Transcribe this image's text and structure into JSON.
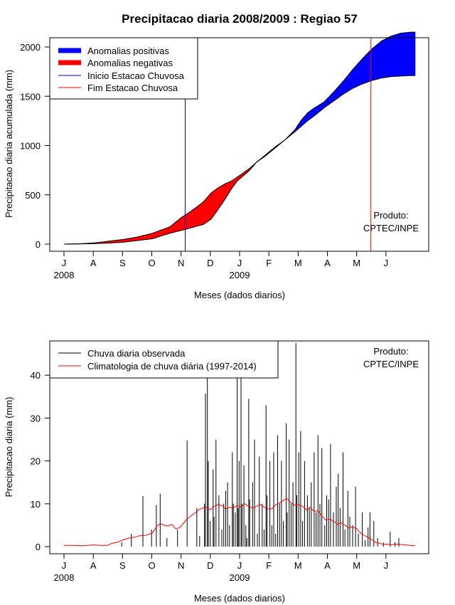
{
  "chart_data": [
    {
      "type": "area",
      "title": "Precipitacao diaria 2008/2009 : Regiao 57",
      "xlabel": "Meses (dados diarios)",
      "ylabel": "Precipitacao diaria acumulada (mm)",
      "x_ticks": [
        "J",
        "A",
        "S",
        "O",
        "N",
        "D",
        "J",
        "F",
        "M",
        "A",
        "M",
        "J"
      ],
      "year_labels": [
        {
          "text": "2008",
          "tick_index": 0
        },
        {
          "text": "2009",
          "tick_index": 6
        }
      ],
      "ylim": [
        0,
        2200
      ],
      "y_ticks": [
        0,
        500,
        1000,
        1500,
        2000
      ],
      "x_range_days": [
        0,
        365
      ],
      "legend": {
        "placement": "top-left",
        "items": [
          {
            "label": "Anomalias positivas",
            "color": "#0000ff",
            "style": "thick"
          },
          {
            "label": "Anomalias negativas",
            "color": "#ff0000",
            "style": "thick"
          },
          {
            "label": "Inicio Estacao Chuvosa",
            "color": "#0000ff",
            "style": "thin"
          },
          {
            "label": "Fim Estacao Chuvosa",
            "color": "#ff0000",
            "style": "thin"
          }
        ]
      },
      "series": [
        {
          "name": "observed_cumulative",
          "points": [
            [
              0,
              0
            ],
            [
              15,
              2
            ],
            [
              31,
              5
            ],
            [
              45,
              10
            ],
            [
              62,
              20
            ],
            [
              75,
              35
            ],
            [
              92,
              55
            ],
            [
              100,
              80
            ],
            [
              110,
              110
            ],
            [
              122,
              140
            ],
            [
              130,
              160
            ],
            [
              137,
              180
            ],
            [
              145,
              200
            ],
            [
              153,
              255
            ],
            [
              160,
              350
            ],
            [
              167,
              450
            ],
            [
              174,
              560
            ],
            [
              180,
              640
            ],
            [
              186,
              690
            ],
            [
              193,
              750
            ],
            [
              200,
              830
            ],
            [
              210,
              910
            ],
            [
              220,
              990
            ],
            [
              230,
              1060
            ],
            [
              240,
              1160
            ],
            [
              246,
              1250
            ],
            [
              253,
              1330
            ],
            [
              260,
              1380
            ],
            [
              270,
              1440
            ],
            [
              280,
              1540
            ],
            [
              290,
              1650
            ],
            [
              300,
              1770
            ],
            [
              310,
              1880
            ],
            [
              320,
              1980
            ],
            [
              330,
              2060
            ],
            [
              340,
              2110
            ],
            [
              350,
              2140
            ],
            [
              360,
              2150
            ],
            [
              365,
              2150
            ]
          ]
        },
        {
          "name": "climatology_cumulative",
          "points": [
            [
              0,
              0
            ],
            [
              15,
              3
            ],
            [
              31,
              12
            ],
            [
              45,
              28
            ],
            [
              62,
              48
            ],
            [
              75,
              70
            ],
            [
              92,
              110
            ],
            [
              100,
              140
            ],
            [
              110,
              175
            ],
            [
              122,
              270
            ],
            [
              130,
              320
            ],
            [
              137,
              370
            ],
            [
              145,
              430
            ],
            [
              153,
              520
            ],
            [
              160,
              570
            ],
            [
              167,
              610
            ],
            [
              174,
              640
            ],
            [
              180,
              680
            ],
            [
              186,
              720
            ],
            [
              193,
              770
            ],
            [
              200,
              830
            ],
            [
              210,
              900
            ],
            [
              220,
              980
            ],
            [
              230,
              1060
            ],
            [
              240,
              1140
            ],
            [
              246,
              1190
            ],
            [
              253,
              1250
            ],
            [
              260,
              1300
            ],
            [
              270,
              1380
            ],
            [
              280,
              1450
            ],
            [
              290,
              1520
            ],
            [
              300,
              1580
            ],
            [
              310,
              1625
            ],
            [
              320,
              1660
            ],
            [
              330,
              1685
            ],
            [
              340,
              1700
            ],
            [
              350,
              1705
            ],
            [
              360,
              1710
            ],
            [
              365,
              1710
            ]
          ]
        }
      ],
      "season_markers": {
        "start_day": 126,
        "end_day": 319
      },
      "credit": [
        "Produto:",
        "CPTEC/INPE"
      ]
    },
    {
      "type": "bar",
      "xlabel": "Meses (dados diarios)",
      "ylabel": "Precipitacao diaria (mm)",
      "x_ticks": [
        "J",
        "A",
        "S",
        "O",
        "N",
        "D",
        "J",
        "F",
        "M",
        "A",
        "M",
        "J"
      ],
      "year_labels": [
        {
          "text": "2008",
          "tick_index": 0
        },
        {
          "text": "2009",
          "tick_index": 6
        }
      ],
      "ylim": [
        0,
        48
      ],
      "y_ticks": [
        0,
        10,
        20,
        30,
        40
      ],
      "x_range_days": [
        0,
        365
      ],
      "legend": {
        "placement": "top-left",
        "items": [
          {
            "label": "Chuva diaria observada",
            "color": "#000000",
            "style": "thin"
          },
          {
            "label": "Climatologia de chuva diária (1997-2014)",
            "color": "#ff0000",
            "style": "thin"
          }
        ]
      },
      "series": [
        {
          "name": "daily_observed",
          "points": [
            [
              60,
              1
            ],
            [
              70,
              3
            ],
            [
              82,
              11.8
            ],
            [
              91,
              4
            ],
            [
              96,
              9.7
            ],
            [
              100,
              12.3
            ],
            [
              107,
              2
            ],
            [
              118,
              4
            ],
            [
              128,
              24.8
            ],
            [
              138,
              9
            ],
            [
              141,
              2.5
            ],
            [
              146,
              10
            ],
            [
              147,
              35.7
            ],
            [
              149,
              47
            ],
            [
              150,
              20
            ],
            [
              152,
              6
            ],
            [
              155,
              18
            ],
            [
              156,
              7
            ],
            [
              158,
              25
            ],
            [
              161,
              12
            ],
            [
              164,
              4
            ],
            [
              166,
              10
            ],
            [
              168,
              13
            ],
            [
              170,
              15
            ],
            [
              172,
              5
            ],
            [
              175,
              22
            ],
            [
              176,
              10
            ],
            [
              178,
              8
            ],
            [
              180,
              43
            ],
            [
              181,
              9
            ],
            [
              182,
              20
            ],
            [
              184,
              42.5
            ],
            [
              185,
              10
            ],
            [
              187,
              19
            ],
            [
              189,
              5
            ],
            [
              190,
              2
            ],
            [
              192,
              34.5
            ],
            [
              193,
              11
            ],
            [
              196,
              15
            ],
            [
              198,
              25
            ],
            [
              201,
              3
            ],
            [
              203,
              21
            ],
            [
              206,
              10
            ],
            [
              208,
              4
            ],
            [
              210,
              33
            ],
            [
              211,
              12
            ],
            [
              214,
              20
            ],
            [
              216,
              5
            ],
            [
              218,
              22
            ],
            [
              220,
              3
            ],
            [
              222,
              26
            ],
            [
              224,
              10
            ],
            [
              226,
              20
            ],
            [
              228,
              6
            ],
            [
              231,
              28.8
            ],
            [
              232,
              8
            ],
            [
              234,
              25
            ],
            [
              236,
              10
            ],
            [
              238,
              15
            ],
            [
              241,
              47.5
            ],
            [
              242,
              12
            ],
            [
              244,
              22
            ],
            [
              246,
              27
            ],
            [
              248,
              6
            ],
            [
              250,
              20
            ],
            [
              253,
              12
            ],
            [
              255,
              9
            ],
            [
              257,
              15
            ],
            [
              260,
              22
            ],
            [
              262,
              8
            ],
            [
              264,
              26
            ],
            [
              266,
              10
            ],
            [
              268,
              23
            ],
            [
              271,
              5
            ],
            [
              273,
              12
            ],
            [
              275,
              11
            ],
            [
              277,
              24
            ],
            [
              280,
              8
            ],
            [
              283,
              14
            ],
            [
              285,
              17
            ],
            [
              287,
              9
            ],
            [
              290,
              22
            ],
            [
              292,
              4
            ],
            [
              295,
              13
            ],
            [
              297,
              7
            ],
            [
              300,
              5
            ],
            [
              303,
              14
            ],
            [
              306,
              3
            ],
            [
              310,
              8
            ],
            [
              313,
              1.5
            ],
            [
              316,
              4.5
            ],
            [
              318,
              8
            ],
            [
              322,
              6
            ],
            [
              326,
              2
            ],
            [
              332,
              1
            ],
            [
              339,
              3.5
            ],
            [
              344,
              1
            ],
            [
              348,
              2
            ]
          ]
        },
        {
          "name": "climatology_daily",
          "points": [
            [
              0,
              0.3
            ],
            [
              10,
              0.3
            ],
            [
              20,
              0.2
            ],
            [
              30,
              0.4
            ],
            [
              40,
              0.3
            ],
            [
              45,
              0.3
            ],
            [
              50,
              0.8
            ],
            [
              55,
              1.0
            ],
            [
              62,
              1.6
            ],
            [
              68,
              2.0
            ],
            [
              75,
              2.3
            ],
            [
              80,
              2.6
            ],
            [
              85,
              2.6
            ],
            [
              92,
              3.2
            ],
            [
              96,
              4.6
            ],
            [
              100,
              5.4
            ],
            [
              104,
              5.0
            ],
            [
              108,
              4.8
            ],
            [
              112,
              5.2
            ],
            [
              116,
              4.2
            ],
            [
              120,
              4.4
            ],
            [
              124,
              5.4
            ],
            [
              128,
              6.5
            ],
            [
              132,
              7.2
            ],
            [
              136,
              7.8
            ],
            [
              140,
              8.6
            ],
            [
              144,
              9.0
            ],
            [
              148,
              9.2
            ],
            [
              152,
              8.6
            ],
            [
              156,
              9.4
            ],
            [
              160,
              9.8
            ],
            [
              164,
              9.6
            ],
            [
              168,
              8.8
            ],
            [
              172,
              9.2
            ],
            [
              176,
              9.0
            ],
            [
              180,
              9.6
            ],
            [
              184,
              9.2
            ],
            [
              188,
              10.0
            ],
            [
              192,
              9.4
            ],
            [
              196,
              9.0
            ],
            [
              200,
              9.4
            ],
            [
              204,
              9.8
            ],
            [
              208,
              9.2
            ],
            [
              212,
              8.8
            ],
            [
              216,
              8.8
            ],
            [
              220,
              9.8
            ],
            [
              224,
              10.2
            ],
            [
              228,
              10.8
            ],
            [
              232,
              11.2
            ],
            [
              236,
              10.2
            ],
            [
              240,
              9.6
            ],
            [
              244,
              9.8
            ],
            [
              248,
              9.4
            ],
            [
              252,
              8.6
            ],
            [
              256,
              9.2
            ],
            [
              260,
              8.2
            ],
            [
              264,
              8.4
            ],
            [
              268,
              7.2
            ],
            [
              272,
              6.2
            ],
            [
              276,
              6.4
            ],
            [
              280,
              6.0
            ],
            [
              284,
              5.2
            ],
            [
              288,
              5.6
            ],
            [
              292,
              5.0
            ],
            [
              296,
              4.4
            ],
            [
              300,
              4.6
            ],
            [
              304,
              4.2
            ],
            [
              308,
              3.2
            ],
            [
              312,
              2.6
            ],
            [
              316,
              2.2
            ],
            [
              320,
              1.6
            ],
            [
              324,
              1.0
            ],
            [
              328,
              0.8
            ],
            [
              332,
              0.5
            ],
            [
              336,
              0.6
            ],
            [
              340,
              0.4
            ],
            [
              345,
              0.6
            ],
            [
              350,
              0.5
            ],
            [
              355,
              0.4
            ],
            [
              360,
              0.3
            ],
            [
              365,
              0.2
            ]
          ]
        }
      ],
      "credit": [
        "Produto:",
        "CPTEC/INPE"
      ]
    }
  ]
}
